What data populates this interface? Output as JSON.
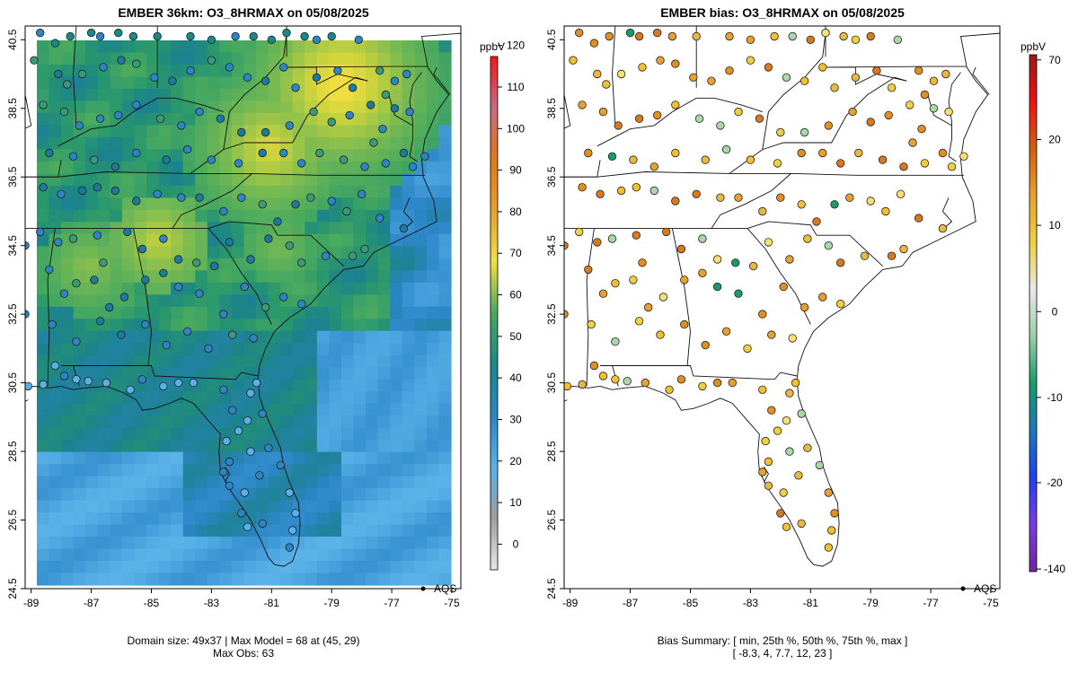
{
  "panels": [
    {
      "title": "EMBER 36km: O3_8HRMAX on 05/08/2025",
      "x_ticks": [
        "-89",
        "-87",
        "-85",
        "-83",
        "-81",
        "-79",
        "-77",
        "-75"
      ],
      "y_ticks": [
        "24.5",
        "26.5",
        "28.5",
        "30.5",
        "32.5",
        "34.5",
        "36.5",
        "38.5",
        "40.5"
      ],
      "legend_label": "AQS",
      "colorbar": {
        "unit": "ppbV",
        "ticks": [
          "0",
          "10",
          "20",
          "30",
          "40",
          "50",
          "60",
          "70",
          "80",
          "90",
          "100",
          "110",
          "120"
        ],
        "colors": [
          "#e8e8e8",
          "#9e9e9e",
          "#58b2e8",
          "#2c86c6",
          "#168a8a",
          "#4aa860",
          "#f0e040",
          "#e8a030",
          "#e07818",
          "#c86a84",
          "#f01818"
        ]
      },
      "caption_line1": "Domain size: 49x37 | Max Model = 68 at (45, 29)",
      "caption_line2": "Max Obs: 63"
    },
    {
      "title": "EMBER bias: O3_8HRMAX on 05/08/2025",
      "x_ticks": [
        "-89",
        "-87",
        "-85",
        "-83",
        "-81",
        "-79",
        "-77",
        "-75"
      ],
      "y_ticks": [
        "24.5",
        "26.5",
        "28.5",
        "30.5",
        "32.5",
        "34.5",
        "36.5",
        "38.5",
        "40.5"
      ],
      "legend_label": "AQS",
      "colorbar": {
        "unit": "ppbV",
        "ticks": [
          "-140",
          "-20",
          "-10",
          "0",
          "10",
          "20",
          "70"
        ],
        "colors": [
          "#6a2a9a",
          "#7a3ae8",
          "#2040f0",
          "#1c7ab8",
          "#1a9a6a",
          "#9ad0a8",
          "#e8e8e8",
          "#f0d040",
          "#e8a030",
          "#d06010",
          "#f01010",
          "#9a1a1a"
        ]
      },
      "caption_line1": "Bias Summary: [ min, 25th %, 50th %, 75th %, max ]",
      "caption_line2": "[ -8.3,   4,   7.7,   12,   23 ]"
    }
  ]
}
